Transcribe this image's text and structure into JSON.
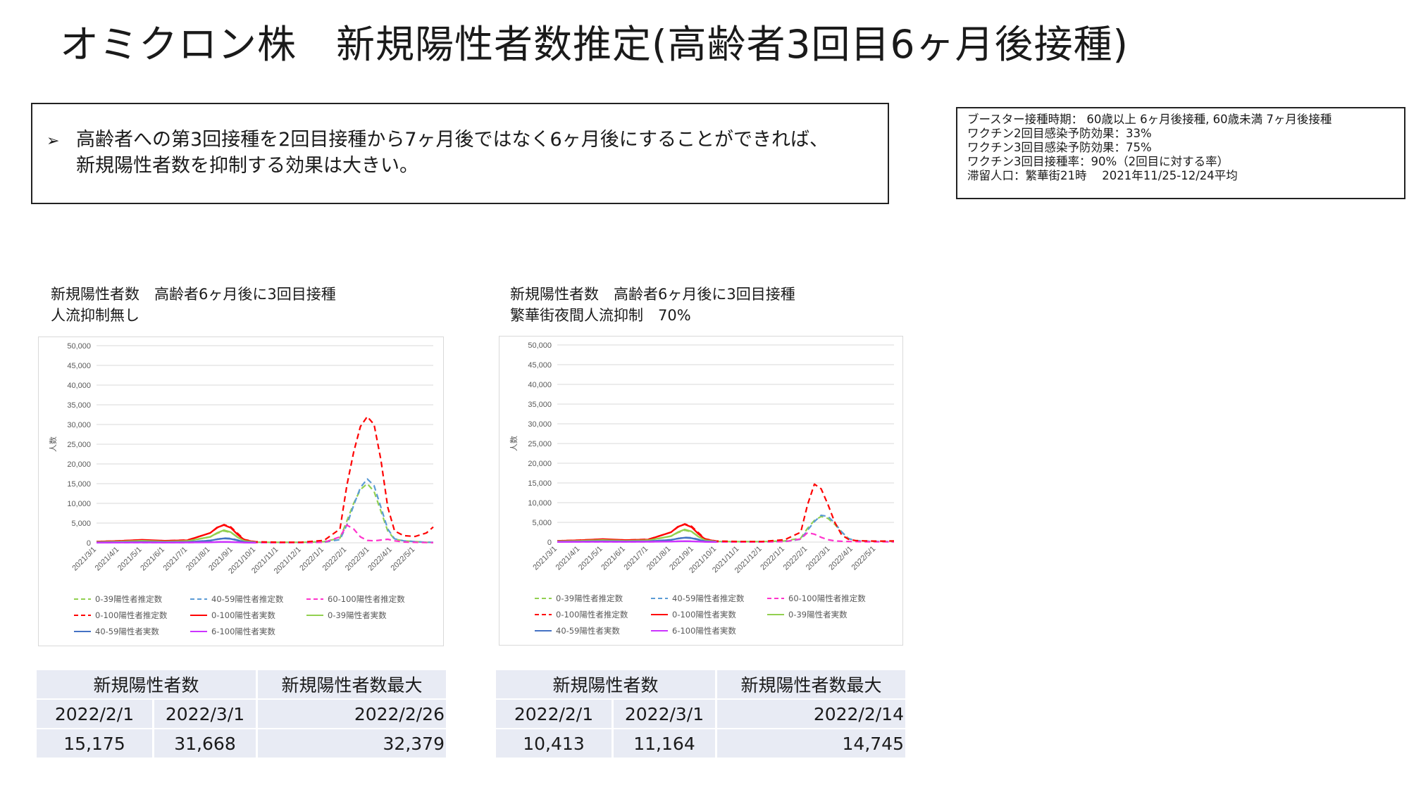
{
  "title": "オミクロン株　新規陽性者数推定(高齢者3回目6ヶ月後接種)",
  "summary": {
    "bullet": "➢",
    "line1": "高齢者への第3回接種を2回目接種から7ヶ月後ではなく6ヶ月後にすることができれば、",
    "line2": "新規陽性者数を抑制する効果は大きい。"
  },
  "assumptions": [
    "ブースター接種時期： 60歳以上 6ヶ月後接種, 60歳未満 7ヶ月後接種",
    "ワクチン2回目感染予防効果：33%",
    "ワクチン3回目感染予防効果：75%",
    "ワクチン3回目接種率：90%（2回目に対する率）",
    "滞留人口：繁華街21時　 2021年11/25-12/24平均"
  ],
  "panels": [
    {
      "caption1": "新規陽性者数　高齢者6ヶ月後に3回目接種",
      "caption2": "人流抑制無し",
      "table": {
        "h1": "新規陽性者数",
        "h2": "新規陽性者数最大",
        "d1": "2022/2/1",
        "d2": "2022/3/1",
        "d3": "2022/2/26",
        "v1": "15,175",
        "v2": "31,668",
        "v3": "32,379"
      }
    },
    {
      "caption1": "新規陽性者数　高齢者6ヶ月後に3回目接種",
      "caption2": "繁華街夜間人流抑制　70%",
      "table": {
        "h1": "新規陽性者数",
        "h2": "新規陽性者数最大",
        "d1": "2022/2/1",
        "d2": "2022/3/1",
        "d3": "2022/2/14",
        "v1": "10,413",
        "v2": "11,164",
        "v3": "14,745"
      }
    }
  ],
  "chart_data": [
    {
      "type": "line",
      "title": "",
      "ylabel": "人数",
      "ylim": [
        0,
        50000
      ],
      "yticks": [
        "0",
        "5,000",
        "10,000",
        "15,000",
        "20,000",
        "25,000",
        "30,000",
        "35,000",
        "40,000",
        "45,000",
        "50,000"
      ],
      "xticks": [
        "2021/3/1",
        "2021/4/1",
        "2021/5/1",
        "2021/6/1",
        "2021/7/1",
        "2021/8/1",
        "2021/9/1",
        "2021/10/1",
        "2021/11/1",
        "2021/12/1",
        "2022/1/1",
        "2022/2/1",
        "2022/3/1",
        "2022/4/1",
        "2022/5/1"
      ],
      "x": [
        0,
        1,
        2,
        3,
        4,
        5,
        5.3,
        5.6,
        5.9,
        6.2,
        6.5,
        7,
        8,
        9,
        10,
        10.7,
        11,
        11.3,
        11.6,
        11.9,
        12.2,
        12.5,
        12.8,
        13.1,
        13.5,
        14,
        14.5,
        14.8
      ],
      "series": [
        {
          "name": "0-39陽性者推定数",
          "color": "#92d050",
          "dash": "dash",
          "values": [
            200,
            350,
            500,
            300,
            400,
            1500,
            2400,
            3000,
            2600,
            1500,
            500,
            150,
            100,
            100,
            300,
            1200,
            5500,
            10000,
            13500,
            15000,
            13000,
            8000,
            3000,
            900,
            500,
            300,
            150,
            100
          ]
        },
        {
          "name": "40-59陽性者推定数",
          "color": "#5b9bd5",
          "dash": "dash",
          "values": [
            100,
            150,
            200,
            150,
            200,
            600,
            900,
            1200,
            1100,
            700,
            250,
            80,
            50,
            50,
            150,
            800,
            4500,
            9500,
            14000,
            16200,
            14500,
            9000,
            3500,
            1000,
            500,
            300,
            150,
            100
          ]
        },
        {
          "name": "60-100陽性者推定数",
          "color": "#ff33cc",
          "dash": "dash",
          "values": [
            50,
            60,
            80,
            60,
            80,
            150,
            200,
            250,
            200,
            150,
            80,
            30,
            20,
            20,
            100,
            1500,
            4500,
            3500,
            1500,
            600,
            500,
            700,
            900,
            500,
            200,
            100,
            50,
            30
          ]
        },
        {
          "name": "0-100陽性者推定数",
          "color": "#ff0000",
          "dash": "dash",
          "values": [
            300,
            500,
            700,
            500,
            700,
            2500,
            3800,
            4600,
            4000,
            2400,
            800,
            250,
            150,
            150,
            600,
            3500,
            14500,
            23000,
            29500,
            32000,
            30000,
            21000,
            9000,
            3000,
            1800,
            1600,
            2500,
            4000
          ]
        },
        {
          "name": "0-100陽性者実数",
          "color": "#ff0000",
          "dash": "solid",
          "values": [
            300,
            450,
            750,
            500,
            650,
            2500,
            3900,
            4500,
            3800,
            2100,
            700,
            200,
            null,
            null,
            null,
            null,
            null,
            null,
            null,
            null,
            null,
            null,
            null,
            null,
            null,
            null,
            null,
            null
          ]
        },
        {
          "name": "0-39陽性者実数",
          "color": "#92d050",
          "dash": "solid",
          "values": [
            200,
            300,
            500,
            300,
            450,
            1500,
            2500,
            3200,
            2700,
            1400,
            450,
            120,
            null,
            null,
            null,
            null,
            null,
            null,
            null,
            null,
            null,
            null,
            null,
            null,
            null,
            null,
            null,
            null
          ]
        },
        {
          "name": "40-59陽性者実数",
          "color": "#4472c4",
          "dash": "solid",
          "values": [
            80,
            120,
            200,
            140,
            180,
            550,
            900,
            1100,
            1000,
            600,
            200,
            60,
            null,
            null,
            null,
            null,
            null,
            null,
            null,
            null,
            null,
            null,
            null,
            null,
            null,
            null,
            null,
            null
          ]
        },
        {
          "name": "6-100陽性者実数",
          "color": "#cc33ff",
          "dash": "solid",
          "values": [
            40,
            50,
            80,
            60,
            70,
            130,
            190,
            230,
            200,
            130,
            60,
            20,
            null,
            null,
            null,
            null,
            null,
            null,
            null,
            null,
            null,
            null,
            null,
            null,
            null,
            null,
            null,
            null
          ]
        }
      ]
    },
    {
      "type": "line",
      "title": "",
      "ylabel": "人数",
      "ylim": [
        0,
        50000
      ],
      "yticks": [
        "0",
        "5,000",
        "10,000",
        "15,000",
        "20,000",
        "25,000",
        "30,000",
        "35,000",
        "40,000",
        "45,000",
        "50,000"
      ],
      "xticks": [
        "2021/3/1",
        "2021/4/1",
        "2021/5/1",
        "2021/6/1",
        "2021/7/1",
        "2021/8/1",
        "2021/9/1",
        "2021/10/1",
        "2021/11/1",
        "2021/12/1",
        "2022/1/1",
        "2022/2/1",
        "2022/3/1",
        "2022/4/1",
        "2022/5/1"
      ],
      "x": [
        0,
        1,
        2,
        3,
        4,
        5,
        5.3,
        5.6,
        5.9,
        6.2,
        6.5,
        7,
        8,
        9,
        10,
        10.7,
        11,
        11.3,
        11.6,
        11.9,
        12.2,
        12.5,
        12.8,
        13.1,
        13.5,
        14,
        14.5,
        14.8
      ],
      "series": [
        {
          "name": "0-39陽性者推定数",
          "color": "#92d050",
          "dash": "dash",
          "values": [
            200,
            350,
            500,
            300,
            400,
            1500,
            2400,
            3000,
            2600,
            1500,
            500,
            150,
            100,
            100,
            300,
            1000,
            3500,
            5500,
            6500,
            6000,
            4500,
            2500,
            900,
            400,
            250,
            150,
            100,
            100
          ]
        },
        {
          "name": "40-59陽性者推定数",
          "color": "#5b9bd5",
          "dash": "dash",
          "values": [
            100,
            150,
            200,
            150,
            200,
            600,
            900,
            1200,
            1100,
            700,
            250,
            80,
            50,
            50,
            150,
            700,
            3000,
            5200,
            6800,
            6500,
            4800,
            2600,
            900,
            350,
            200,
            150,
            100,
            100
          ]
        },
        {
          "name": "60-100陽性者推定数",
          "color": "#ff33cc",
          "dash": "dash",
          "values": [
            50,
            60,
            80,
            60,
            80,
            150,
            200,
            250,
            200,
            150,
            80,
            30,
            20,
            20,
            100,
            800,
            2400,
            2000,
            1200,
            600,
            300,
            200,
            150,
            100,
            80,
            60,
            50,
            30
          ]
        },
        {
          "name": "0-100陽性者推定数",
          "color": "#ff0000",
          "dash": "dash",
          "values": [
            300,
            500,
            700,
            500,
            700,
            2500,
            3800,
            4600,
            4000,
            2400,
            800,
            250,
            150,
            150,
            600,
            2500,
            9500,
            14700,
            13500,
            9500,
            5000,
            1800,
            700,
            400,
            300,
            250,
            250,
            300
          ]
        },
        {
          "name": "0-100陽性者実数",
          "color": "#ff0000",
          "dash": "solid",
          "values": [
            300,
            450,
            750,
            500,
            650,
            2500,
            3900,
            4500,
            3800,
            2100,
            700,
            200,
            null,
            null,
            null,
            null,
            null,
            null,
            null,
            null,
            null,
            null,
            null,
            null,
            null,
            null,
            null,
            null
          ]
        },
        {
          "name": "0-39陽性者実数",
          "color": "#92d050",
          "dash": "solid",
          "values": [
            200,
            300,
            500,
            300,
            450,
            1500,
            2500,
            3200,
            2700,
            1400,
            450,
            120,
            null,
            null,
            null,
            null,
            null,
            null,
            null,
            null,
            null,
            null,
            null,
            null,
            null,
            null,
            null,
            null
          ]
        },
        {
          "name": "40-59陽性者実数",
          "color": "#4472c4",
          "dash": "solid",
          "values": [
            80,
            120,
            200,
            140,
            180,
            550,
            900,
            1100,
            1000,
            600,
            200,
            60,
            null,
            null,
            null,
            null,
            null,
            null,
            null,
            null,
            null,
            null,
            null,
            null,
            null,
            null,
            null,
            null
          ]
        },
        {
          "name": "6-100陽性者実数",
          "color": "#cc33ff",
          "dash": "solid",
          "values": [
            40,
            50,
            80,
            60,
            70,
            130,
            190,
            230,
            200,
            130,
            60,
            20,
            null,
            null,
            null,
            null,
            null,
            null,
            null,
            null,
            null,
            null,
            null,
            null,
            null,
            null,
            null,
            null
          ]
        }
      ]
    }
  ]
}
